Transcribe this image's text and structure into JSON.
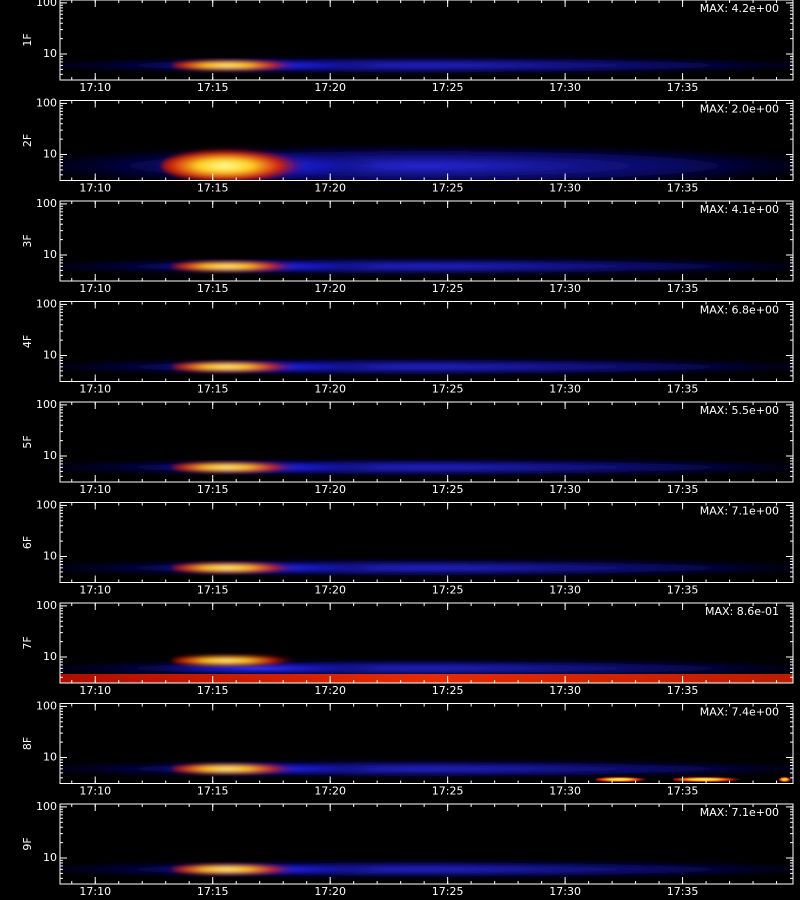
{
  "chart_data": [
    {
      "type": "spectrogram",
      "ylabel": "1F",
      "annotation": "MAX: 4.2e+00",
      "xlim": [
        8.5,
        39.7
      ],
      "xticks": [
        {
          "value": 10,
          "label": "17:10"
        },
        {
          "value": 15,
          "label": "17:15"
        },
        {
          "value": 20,
          "label": "17:20"
        },
        {
          "value": 25,
          "label": "17:25"
        },
        {
          "value": 30,
          "label": "17:30"
        },
        {
          "value": 35,
          "label": "17:35"
        }
      ],
      "ylim": [
        3.1,
        114
      ],
      "yticks": [
        10,
        100
      ],
      "log_y": true
    },
    {
      "type": "spectrogram",
      "ylabel": "2F",
      "annotation": "MAX: 2.0e+00",
      "xlim": [
        8.5,
        39.7
      ],
      "xticks": [
        {
          "value": 10,
          "label": "17:10"
        },
        {
          "value": 15,
          "label": "17:15"
        },
        {
          "value": 20,
          "label": "17:20"
        },
        {
          "value": 25,
          "label": "17:25"
        },
        {
          "value": 30,
          "label": "17:30"
        },
        {
          "value": 35,
          "label": "17:35"
        }
      ],
      "ylim": [
        3.1,
        114
      ],
      "yticks": [
        10,
        100
      ],
      "log_y": true
    },
    {
      "type": "spectrogram",
      "ylabel": "3F",
      "annotation": "MAX: 4.1e+00",
      "xlim": [
        8.5,
        39.7
      ],
      "xticks": [
        {
          "value": 10,
          "label": "17:10"
        },
        {
          "value": 15,
          "label": "17:15"
        },
        {
          "value": 20,
          "label": "17:20"
        },
        {
          "value": 25,
          "label": "17:25"
        },
        {
          "value": 30,
          "label": "17:30"
        },
        {
          "value": 35,
          "label": "17:35"
        }
      ],
      "ylim": [
        3.1,
        114
      ],
      "yticks": [
        10,
        100
      ],
      "log_y": true
    },
    {
      "type": "spectrogram",
      "ylabel": "4F",
      "annotation": "MAX: 6.8e+00",
      "xlim": [
        8.5,
        39.7
      ],
      "xticks": [
        {
          "value": 10,
          "label": "17:10"
        },
        {
          "value": 15,
          "label": "17:15"
        },
        {
          "value": 20,
          "label": "17:20"
        },
        {
          "value": 25,
          "label": "17:25"
        },
        {
          "value": 30,
          "label": "17:30"
        },
        {
          "value": 35,
          "label": "17:35"
        }
      ],
      "ylim": [
        3.1,
        114
      ],
      "yticks": [
        10,
        100
      ],
      "log_y": true
    },
    {
      "type": "spectrogram",
      "ylabel": "5F",
      "annotation": "MAX: 5.5e+00",
      "xlim": [
        8.5,
        39.7
      ],
      "xticks": [
        {
          "value": 10,
          "label": "17:10"
        },
        {
          "value": 15,
          "label": "17:15"
        },
        {
          "value": 20,
          "label": "17:20"
        },
        {
          "value": 25,
          "label": "17:25"
        },
        {
          "value": 30,
          "label": "17:30"
        },
        {
          "value": 35,
          "label": "17:35"
        }
      ],
      "ylim": [
        3.1,
        114
      ],
      "yticks": [
        10,
        100
      ],
      "log_y": true
    },
    {
      "type": "spectrogram",
      "ylabel": "6F",
      "annotation": "MAX: 7.1e+00",
      "xlim": [
        8.5,
        39.7
      ],
      "xticks": [
        {
          "value": 10,
          "label": "17:10"
        },
        {
          "value": 15,
          "label": "17:15"
        },
        {
          "value": 20,
          "label": "17:20"
        },
        {
          "value": 25,
          "label": "17:25"
        },
        {
          "value": 30,
          "label": "17:30"
        },
        {
          "value": 35,
          "label": "17:35"
        }
      ],
      "ylim": [
        3.1,
        114
      ],
      "yticks": [
        10,
        100
      ],
      "log_y": true
    },
    {
      "type": "spectrogram",
      "ylabel": "7F",
      "annotation": "MAX: 8.6e-01",
      "xlim": [
        8.5,
        39.7
      ],
      "xticks": [
        {
          "value": 10,
          "label": "17:10"
        },
        {
          "value": 15,
          "label": "17:15"
        },
        {
          "value": 20,
          "label": "17:20"
        },
        {
          "value": 25,
          "label": "17:25"
        },
        {
          "value": 30,
          "label": "17:30"
        },
        {
          "value": 35,
          "label": "17:35"
        }
      ],
      "ylim": [
        3.1,
        114
      ],
      "yticks": [
        10,
        100
      ],
      "log_y": true
    },
    {
      "type": "spectrogram",
      "ylabel": "8F",
      "annotation": "MAX: 7.4e+00",
      "xlim": [
        8.5,
        39.7
      ],
      "xticks": [
        {
          "value": 10,
          "label": "17:10"
        },
        {
          "value": 15,
          "label": "17:15"
        },
        {
          "value": 20,
          "label": "17:20"
        },
        {
          "value": 25,
          "label": "17:25"
        },
        {
          "value": 30,
          "label": "17:30"
        },
        {
          "value": 35,
          "label": "17:35"
        }
      ],
      "ylim": [
        3.1,
        114
      ],
      "yticks": [
        10,
        100
      ],
      "log_y": true
    },
    {
      "type": "spectrogram",
      "ylabel": "9F",
      "annotation": "MAX: 7.1e+00",
      "xlim": [
        8.5,
        39.7
      ],
      "xticks": [
        {
          "value": 10,
          "label": "17:10"
        },
        {
          "value": 15,
          "label": "17:15"
        },
        {
          "value": 20,
          "label": "17:20"
        },
        {
          "value": 25,
          "label": "17:25"
        },
        {
          "value": 30,
          "label": "17:30"
        },
        {
          "value": 35,
          "label": "17:35"
        }
      ],
      "ylim": [
        3.1,
        114
      ],
      "yticks": [
        10,
        100
      ],
      "log_y": true
    }
  ]
}
